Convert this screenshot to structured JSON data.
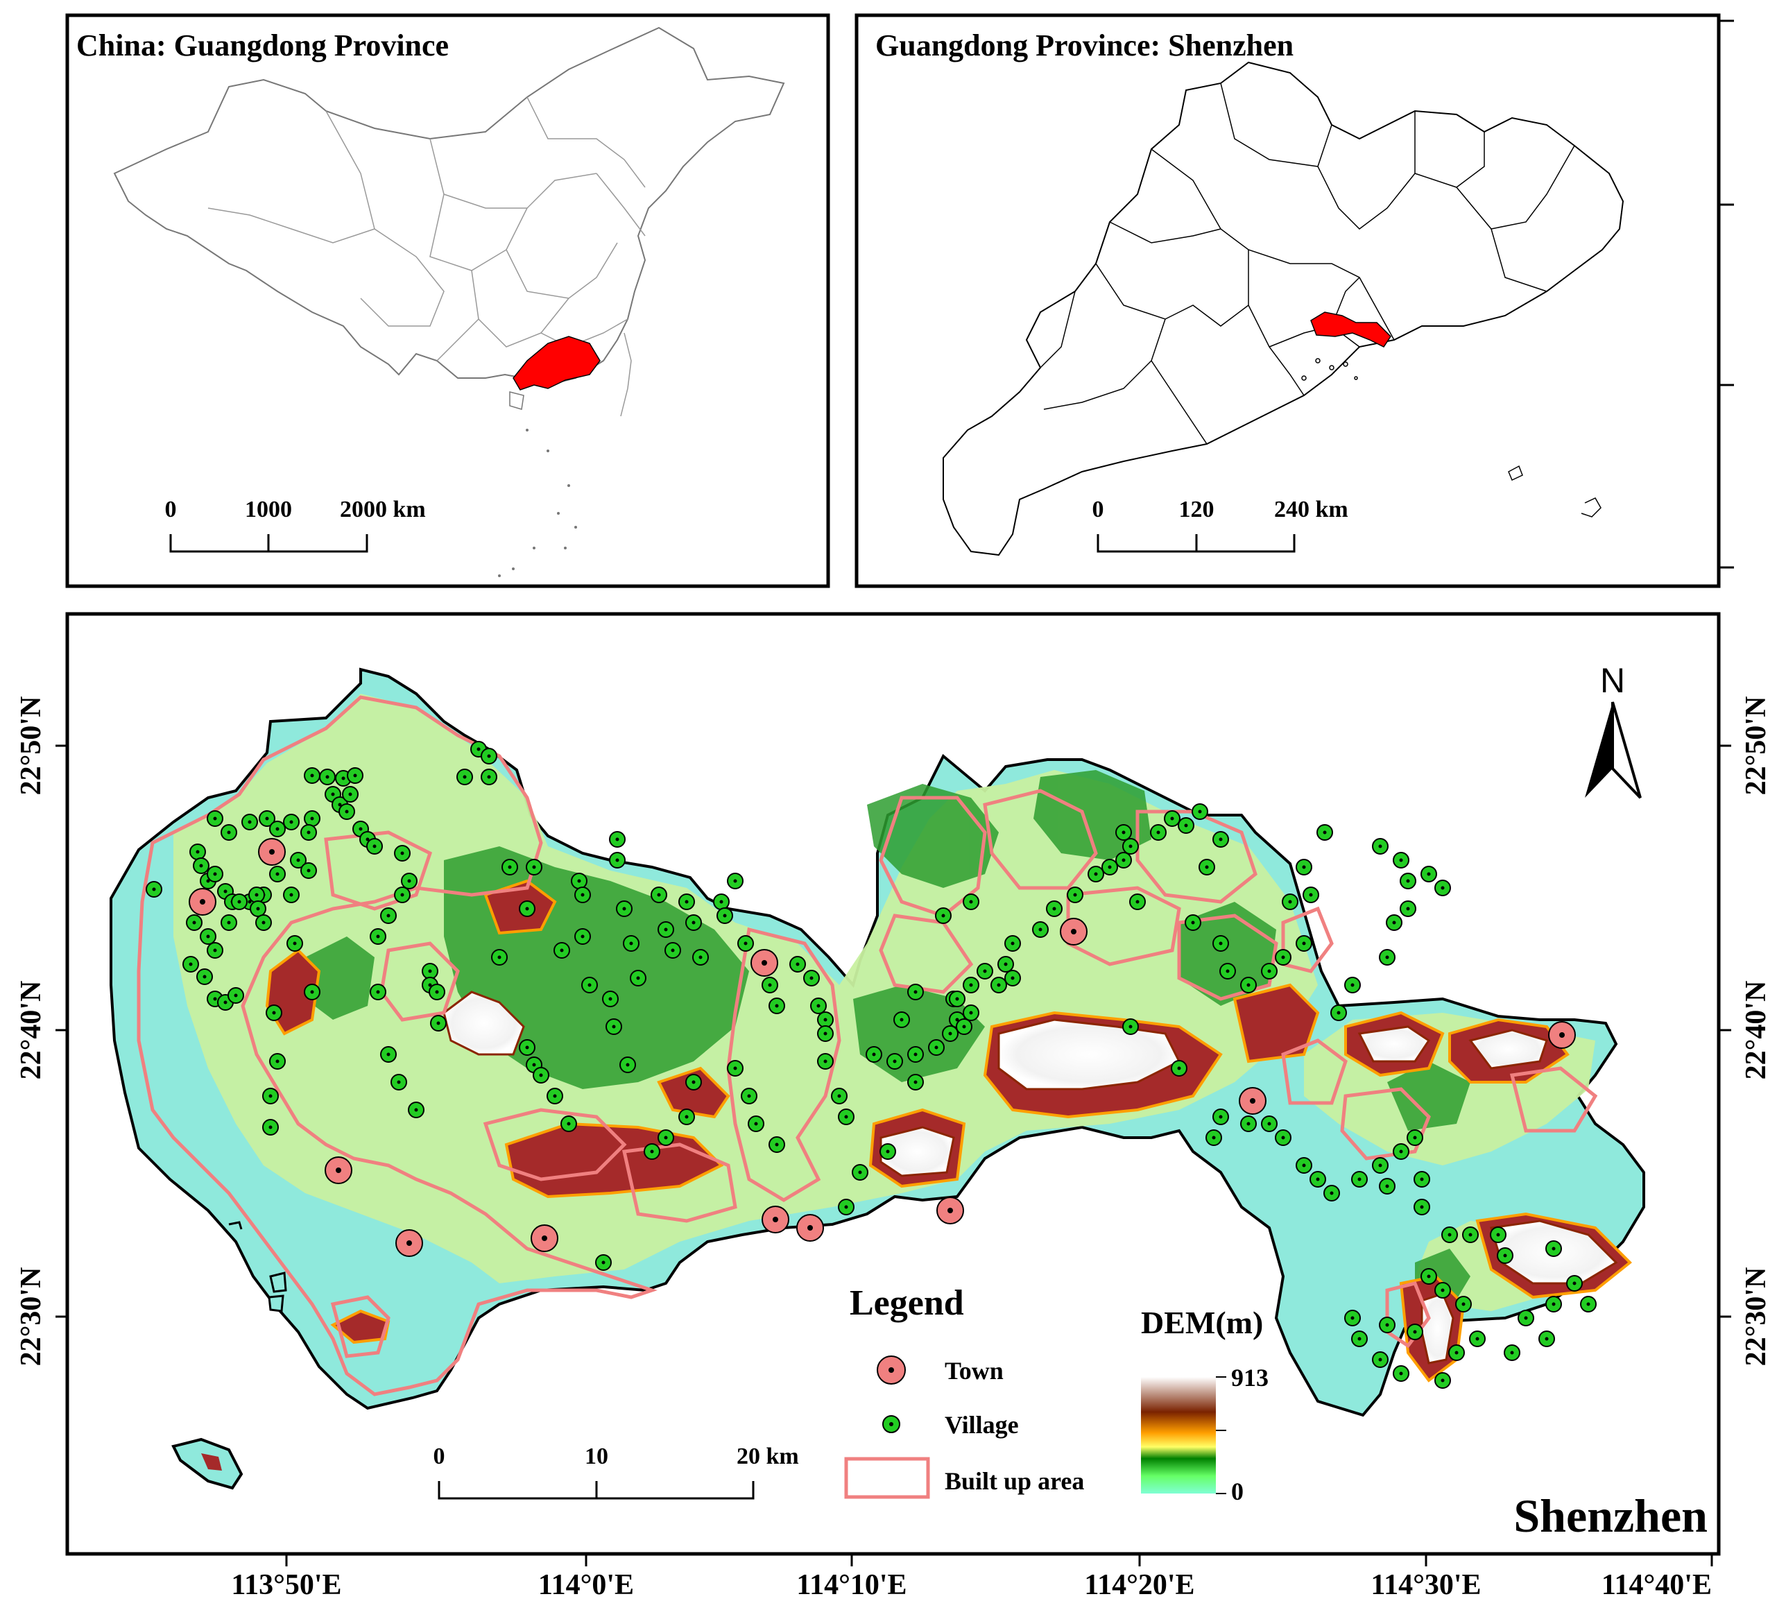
{
  "inset_china": {
    "title": "China: Guangdong Province",
    "scale_ticks": [
      "0",
      "1000",
      "2000 km"
    ],
    "highlight_color": "#ff0000"
  },
  "inset_guangdong": {
    "title": "Guangdong Province: Shenzhen",
    "scale_ticks": [
      "0",
      "120",
      "240 km"
    ],
    "highlight_color": "#ff0000"
  },
  "main_map": {
    "place_label": "Shenzhen",
    "north_label": "N",
    "lat_labels": [
      "22°50'N",
      "22°40'N",
      "22°30'N"
    ],
    "lon_labels": [
      "113°50'E",
      "114°0'E",
      "114°10'E",
      "114°20'E",
      "114°30'E",
      "114°40'E"
    ],
    "scale_ticks": [
      "0",
      "10",
      "20 km"
    ]
  },
  "legend": {
    "title": "Legend",
    "items": [
      {
        "label": "Town",
        "symbol": "town-icon",
        "fill": "#f08080"
      },
      {
        "label": "Village",
        "symbol": "village-icon",
        "fill": "#22cc22"
      },
      {
        "label": "Built up area",
        "symbol": "built-up-area-icon",
        "stroke": "#f08080"
      }
    ]
  },
  "dem": {
    "title": "DEM(m)",
    "max": "913",
    "min": "0",
    "colors": [
      "#ffffff",
      "#8b2500",
      "#ffa500",
      "#ffff66",
      "#008000",
      "#66ff66",
      "#7fffd4"
    ]
  },
  "colors": {
    "lowland": "#8fe9dc",
    "plain": "#c8f0a0",
    "hill": "#2e9e30",
    "ridge": "#a52a2a",
    "peak": "#ffffff",
    "built_up": "#f08080",
    "town": "#f08080",
    "village": "#22cc22"
  }
}
